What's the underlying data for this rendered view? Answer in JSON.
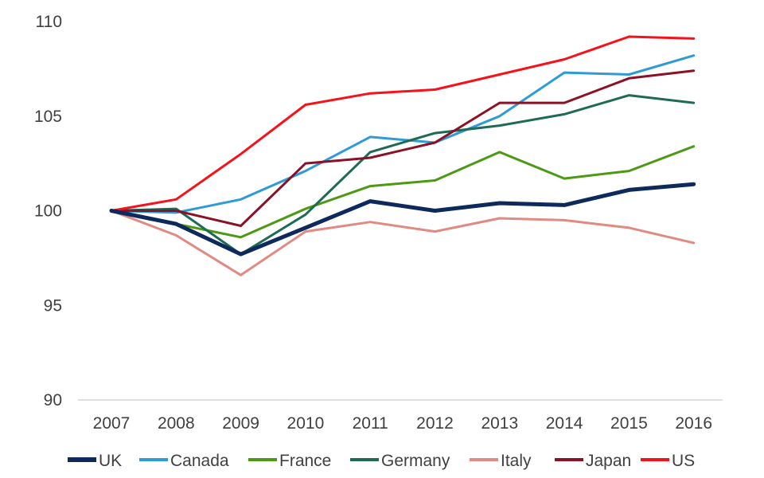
{
  "chart_data": {
    "type": "line",
    "title": "",
    "xlabel": "",
    "ylabel": "",
    "categories": [
      "2007",
      "2008",
      "2009",
      "2010",
      "2011",
      "2012",
      "2013",
      "2014",
      "2015",
      "2016"
    ],
    "ylim": [
      90,
      110
    ],
    "yticks": [
      90,
      95,
      100,
      105,
      110
    ],
    "grid": false,
    "legend_position": "bottom",
    "series": [
      {
        "name": "UK",
        "color": "#0e2a5c",
        "bold": true,
        "values": [
          100,
          99.3,
          97.7,
          99.1,
          100.5,
          100.0,
          100.4,
          100.3,
          101.1,
          101.4
        ]
      },
      {
        "name": "Canada",
        "color": "#2e9bd6",
        "values": [
          100,
          99.9,
          100.6,
          102.1,
          103.9,
          103.6,
          105.0,
          107.3,
          107.2,
          108.2
        ]
      },
      {
        "name": "France",
        "color": "#4c9a14",
        "values": [
          100,
          99.3,
          98.6,
          100.1,
          101.3,
          101.6,
          103.1,
          101.7,
          102.1,
          103.4
        ]
      },
      {
        "name": "Germany",
        "color": "#1d6a55",
        "values": [
          100,
          100.1,
          97.7,
          99.8,
          103.1,
          104.1,
          104.5,
          105.1,
          106.1,
          105.7
        ]
      },
      {
        "name": "Italy",
        "color": "#e08a83",
        "values": [
          100,
          98.7,
          96.6,
          98.9,
          99.4,
          98.9,
          99.6,
          99.5,
          99.1,
          98.3
        ]
      },
      {
        "name": "Japan",
        "color": "#8b1226",
        "values": [
          100,
          100.0,
          99.2,
          102.5,
          102.8,
          103.6,
          105.7,
          105.7,
          107.0,
          107.4
        ]
      },
      {
        "name": "US",
        "color": "#f5121b",
        "values": [
          100,
          100.6,
          103.0,
          105.6,
          106.2,
          106.4,
          107.2,
          108.0,
          109.2,
          109.1
        ]
      }
    ]
  }
}
